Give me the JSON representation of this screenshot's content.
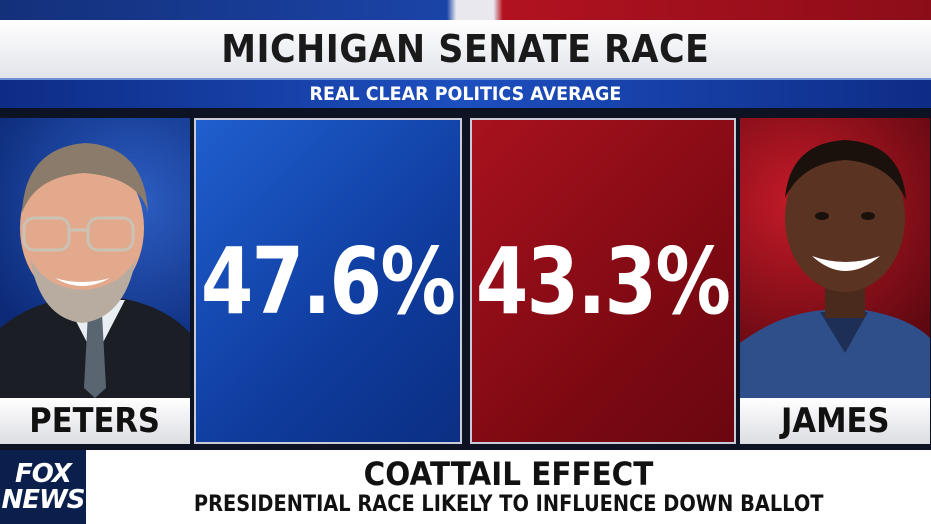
{
  "header": {
    "title": "MICHIGAN SENATE RACE",
    "subtitle": "REAL CLEAR POLITICS AVERAGE"
  },
  "candidates": [
    {
      "name": "PETERS",
      "percent": "47.6%",
      "value": 47.6,
      "color": "#1a52c0"
    },
    {
      "name": "JAMES",
      "percent": "43.3%",
      "value": 43.3,
      "color": "#9a0f1a"
    }
  ],
  "lower_third": {
    "headline": "COATTAIL EFFECT",
    "subline": "PRESIDENTIAL RACE LIKELY TO INFLUENCE DOWN BALLOT"
  },
  "logo": {
    "line1": "FOX",
    "line2": "NEWS"
  }
}
